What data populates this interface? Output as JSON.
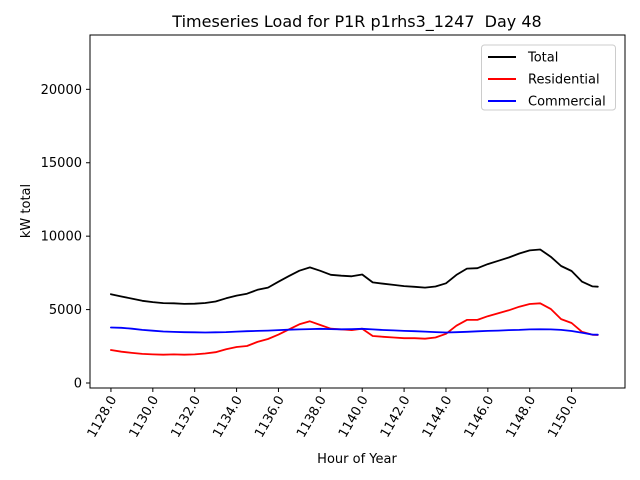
{
  "chart_data": {
    "type": "line",
    "title": "Timeseries Load for P1R p1rhs3_1247  Day 48",
    "xlabel": "Hour of Year",
    "ylabel": "kW total",
    "grid": false,
    "legend_position": "upper right",
    "xlim": [
      1127.0,
      1152.55
    ],
    "ylim": [
      -340,
      23700
    ],
    "x_ticks": [
      1128,
      1130,
      1132,
      1134,
      1136,
      1138,
      1140,
      1142,
      1144,
      1146,
      1148,
      1150
    ],
    "x_tick_labels": [
      "1128.0",
      "1130.0",
      "1132.0",
      "1134.0",
      "1136.0",
      "1138.0",
      "1140.0",
      "1142.0",
      "1144.0",
      "1146.0",
      "1148.0",
      "1150.0"
    ],
    "x_tick_rotation": 60,
    "y_ticks": [
      0,
      5000,
      10000,
      15000,
      20000
    ],
    "y_tick_labels": [
      "0",
      "5000",
      "10000",
      "15000",
      "20000"
    ],
    "x": [
      1128,
      1128.5,
      1129,
      1129.5,
      1130,
      1130.5,
      1131,
      1131.5,
      1132,
      1132.5,
      1133,
      1133.5,
      1134,
      1134.5,
      1135,
      1135.5,
      1136,
      1136.5,
      1137,
      1137.5,
      1138,
      1138.5,
      1139,
      1139.5,
      1140,
      1140.5,
      1141,
      1141.5,
      1142,
      1142.5,
      1143,
      1143.5,
      1144,
      1144.5,
      1145,
      1145.5,
      1146,
      1146.5,
      1147,
      1147.5,
      1148,
      1148.5,
      1149,
      1149.5,
      1150,
      1150.5,
      1151,
      1151.25
    ],
    "series": [
      {
        "name": "Total",
        "color": "#000000",
        "values": [
          6050,
          5890,
          5750,
          5600,
          5510,
          5440,
          5430,
          5390,
          5400,
          5450,
          5550,
          5770,
          5950,
          6080,
          6350,
          6500,
          6900,
          7280,
          7650,
          7870,
          7640,
          7370,
          7310,
          7270,
          7390,
          6850,
          6760,
          6680,
          6600,
          6550,
          6500,
          6570,
          6790,
          7360,
          7790,
          7820,
          8100,
          8320,
          8550,
          8820,
          9030,
          9090,
          8600,
          7970,
          7630,
          6900,
          6580,
          6560
        ]
      },
      {
        "name": "Residential",
        "color": "#ff0000",
        "values": [
          2250,
          2130,
          2050,
          1980,
          1950,
          1930,
          1950,
          1930,
          1950,
          2010,
          2100,
          2300,
          2450,
          2520,
          2800,
          3000,
          3300,
          3650,
          4000,
          4200,
          3950,
          3700,
          3650,
          3600,
          3700,
          3200,
          3150,
          3100,
          3050,
          3050,
          3020,
          3100,
          3350,
          3900,
          4300,
          4300,
          4550,
          4750,
          4950,
          5200,
          5380,
          5430,
          5050,
          4350,
          4090,
          3480,
          3280,
          3270
        ]
      },
      {
        "name": "Commercial",
        "color": "#0000ff",
        "values": [
          3780,
          3760,
          3700,
          3620,
          3560,
          3510,
          3480,
          3460,
          3450,
          3440,
          3450,
          3470,
          3500,
          3530,
          3550,
          3570,
          3600,
          3630,
          3650,
          3670,
          3690,
          3670,
          3660,
          3670,
          3690,
          3650,
          3610,
          3580,
          3550,
          3530,
          3500,
          3470,
          3440,
          3460,
          3490,
          3520,
          3550,
          3570,
          3600,
          3620,
          3650,
          3660,
          3650,
          3620,
          3540,
          3420,
          3300,
          3290
        ]
      }
    ]
  },
  "legend": {
    "edge_color": "#cccccc",
    "fill_color": "#ffffff"
  }
}
